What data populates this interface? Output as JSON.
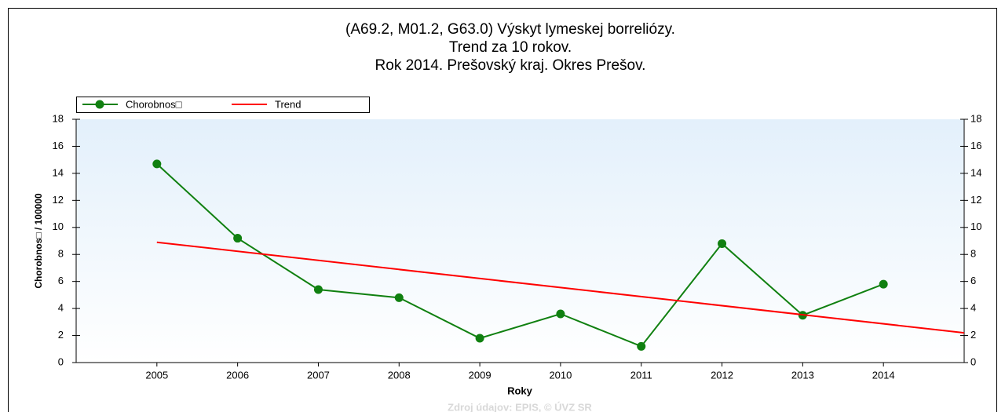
{
  "chart_data": {
    "type": "line",
    "title": [
      "(A69.2, M01.2, G63.0) Výskyt lymeskej borreliózy.",
      "Trend za 10 rokov.",
      "Rok 2014. Prešovský kraj. Okres Prešov."
    ],
    "x_label": "Roky",
    "y_label": "Chorobnos□ / 100000",
    "source": "Zdroj údajov: EPIS, © ÚVZ SR",
    "xlim": [
      2004,
      2015
    ],
    "xticks": [
      2005,
      2006,
      2007,
      2008,
      2009,
      2010,
      2011,
      2012,
      2013,
      2014
    ],
    "ylim": [
      0,
      18
    ],
    "yticks": [
      0,
      2,
      4,
      6,
      8,
      10,
      12,
      14,
      16,
      18
    ],
    "legend": "top-left",
    "series": [
      {
        "name": "Chorobnos□",
        "color": "#108010",
        "markers": true,
        "x": [
          2005,
          2006,
          2007,
          2008,
          2009,
          2010,
          2011,
          2012,
          2013,
          2014
        ],
        "values": [
          14.7,
          9.2,
          5.4,
          4.8,
          1.8,
          3.6,
          1.2,
          8.8,
          3.5,
          5.8
        ]
      },
      {
        "name": "Trend",
        "color": "#ff0000",
        "markers": false,
        "x": [
          2005,
          2015
        ],
        "values": [
          8.9,
          2.2
        ]
      }
    ]
  }
}
